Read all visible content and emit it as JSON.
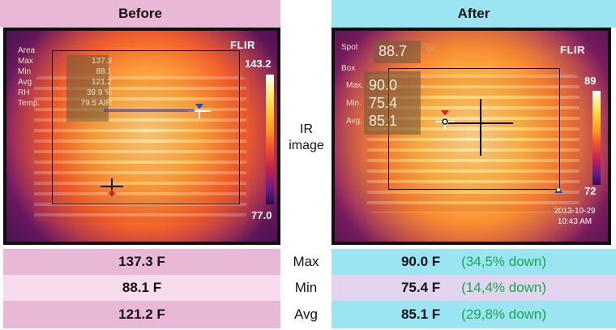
{
  "header": {
    "before": "Before",
    "after": "After"
  },
  "middle_label": "IR image",
  "before_cam": {
    "brand": "FLIR",
    "overlay_title": "Area",
    "stats": [
      {
        "label": "Max",
        "value": "137.3"
      },
      {
        "label": "Min",
        "value": "88.1"
      },
      {
        "label": "Avg",
        "value": "121.2"
      },
      {
        "label": "RH",
        "value": "39.9 %"
      },
      {
        "label": "Temp.",
        "value": "79.5  AIR"
      }
    ],
    "scale_top": "143.2",
    "scale_bottom": "77.0"
  },
  "after_cam": {
    "brand": "FLIR",
    "spot_label": "Spot",
    "spot_value": "88.7",
    "unit": "OF",
    "box_label": "Box",
    "stats": [
      {
        "label": "Max.",
        "value": "90.0"
      },
      {
        "label": "Min.",
        "value": "75.4"
      },
      {
        "label": "Avg.",
        "value": "85.1"
      }
    ],
    "scale_top": "89",
    "scale_bottom": "72",
    "date": "2013-10-29",
    "time": "10:43 AM"
  },
  "rows": [
    {
      "label": "Max",
      "before": "137.3 F",
      "after": "90.0 F",
      "change": "(34,5% down)"
    },
    {
      "label": "Min",
      "before": "88.1 F",
      "after": "75.4 F",
      "change": "(14,4% down)"
    },
    {
      "label": "Avg",
      "before": "121.2 F",
      "after": "85.1 F",
      "change": "(29,8% down)"
    }
  ],
  "colors": {
    "before_header": "#e9b8d6",
    "after_header": "#9be4f2",
    "row_pink": "#e9b8d6",
    "row_pink_light": "#f6dcec",
    "row_cyan": "#9be4f2",
    "row_lavender": "#e2d4ee",
    "change_green": "#1aa84a"
  }
}
